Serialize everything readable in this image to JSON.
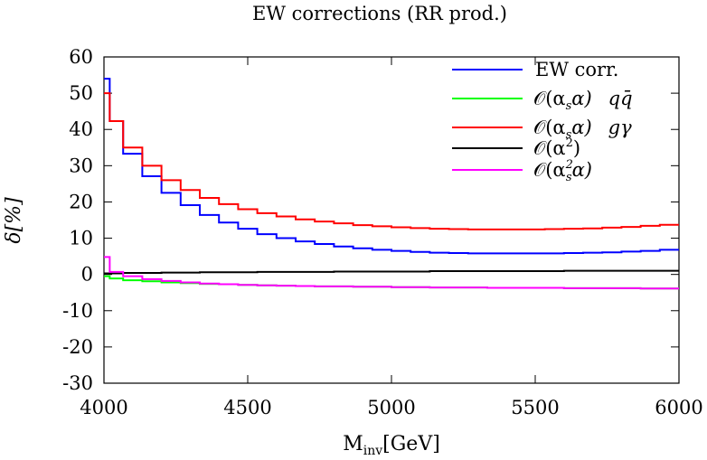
{
  "chart_data": {
    "type": "line",
    "title": "EW corrections (RR prod.)",
    "xlabel": "M_inv[GeV]",
    "xlabel_main": "M",
    "xlabel_sub": "inv",
    "xlabel_unit": "[GeV]",
    "ylabel": "δ[%]",
    "xlim": [
      4000,
      6000
    ],
    "ylim": [
      -30,
      60
    ],
    "xticks": [
      4000,
      4500,
      5000,
      5500,
      6000
    ],
    "yticks": [
      -30,
      -20,
      -10,
      0,
      10,
      20,
      30,
      40,
      50,
      60
    ],
    "legend_position": "top-right",
    "step_style": "histogram",
    "bin_edges": [
      4000,
      4020,
      4066.7,
      4133.3,
      4200,
      4266.7,
      4333.3,
      4400,
      4466.7,
      4533.3,
      4600,
      4666.7,
      4733.3,
      4800,
      4866.7,
      4933.3,
      5000,
      5066.7,
      5133.3,
      5200,
      5266.7,
      5333.3,
      5400,
      5466.7,
      5533.3,
      5600,
      5666.7,
      5733.3,
      5800,
      5866.7,
      5933.3,
      6000
    ],
    "series": [
      {
        "name": "EW corr.",
        "color": "#0000ff",
        "values": [
          54,
          42.3,
          33.3,
          27.1,
          22.5,
          19.1,
          16.4,
          14.3,
          12.6,
          11.1,
          10,
          9.1,
          8.4,
          7.7,
          7.2,
          6.8,
          6.5,
          6.2,
          6,
          5.9,
          5.8,
          5.8,
          5.8,
          5.8,
          5.8,
          5.9,
          6,
          6.1,
          6.3,
          6.5,
          6.8
        ]
      },
      {
        "name": "O(α_s α)  q q̄",
        "color": "#00ff00",
        "values": [
          -0.5,
          -1.1,
          -1.6,
          -1.9,
          -2.2,
          -2.4,
          -2.6,
          -2.7,
          -2.9,
          -3,
          -3.1,
          -3.2,
          -3.3,
          -3.3,
          -3.4,
          -3.4,
          -3.5,
          -3.5,
          -3.6,
          -3.6,
          -3.6,
          -3.7,
          -3.7,
          -3.7,
          -3.7,
          -3.8,
          -3.8,
          -3.8,
          -3.8,
          -3.9,
          -3.9
        ]
      },
      {
        "name": "O(α_s α)  g γ",
        "color": "#ff0000",
        "values": [
          50,
          42.3,
          35,
          30,
          26,
          23.3,
          21.1,
          19.4,
          18,
          16.9,
          16,
          15.2,
          14.6,
          14.1,
          13.6,
          13.3,
          13,
          12.8,
          12.6,
          12.5,
          12.4,
          12.4,
          12.4,
          12.4,
          12.5,
          12.6,
          12.7,
          12.9,
          13.1,
          13.4,
          13.7
        ]
      },
      {
        "name": "O(α²)",
        "color": "#000000",
        "values": [
          0.3,
          0.3,
          0.4,
          0.4,
          0.5,
          0.5,
          0.6,
          0.6,
          0.6,
          0.7,
          0.7,
          0.7,
          0.7,
          0.8,
          0.8,
          0.8,
          0.8,
          0.8,
          0.9,
          0.9,
          0.9,
          0.9,
          0.9,
          0.9,
          0.9,
          1,
          1,
          1,
          1,
          1,
          1
        ]
      },
      {
        "name": "O(α_s² α)",
        "color": "#ff00ff",
        "values": [
          4.8,
          0.7,
          -0.5,
          -1.3,
          -1.8,
          -2.2,
          -2.5,
          -2.7,
          -2.9,
          -3,
          -3.1,
          -3.2,
          -3.3,
          -3.3,
          -3.4,
          -3.4,
          -3.5,
          -3.5,
          -3.6,
          -3.6,
          -3.6,
          -3.7,
          -3.7,
          -3.7,
          -3.7,
          -3.8,
          -3.8,
          -3.8,
          -3.8,
          -3.9,
          -3.9
        ]
      }
    ]
  },
  "legend": [
    {
      "label": "EW corr."
    },
    {
      "label": "𝒪(α"
    },
    {
      "label": "𝒪(α"
    },
    {
      "label": "𝒪(α"
    },
    {
      "label": "𝒪(α"
    }
  ]
}
